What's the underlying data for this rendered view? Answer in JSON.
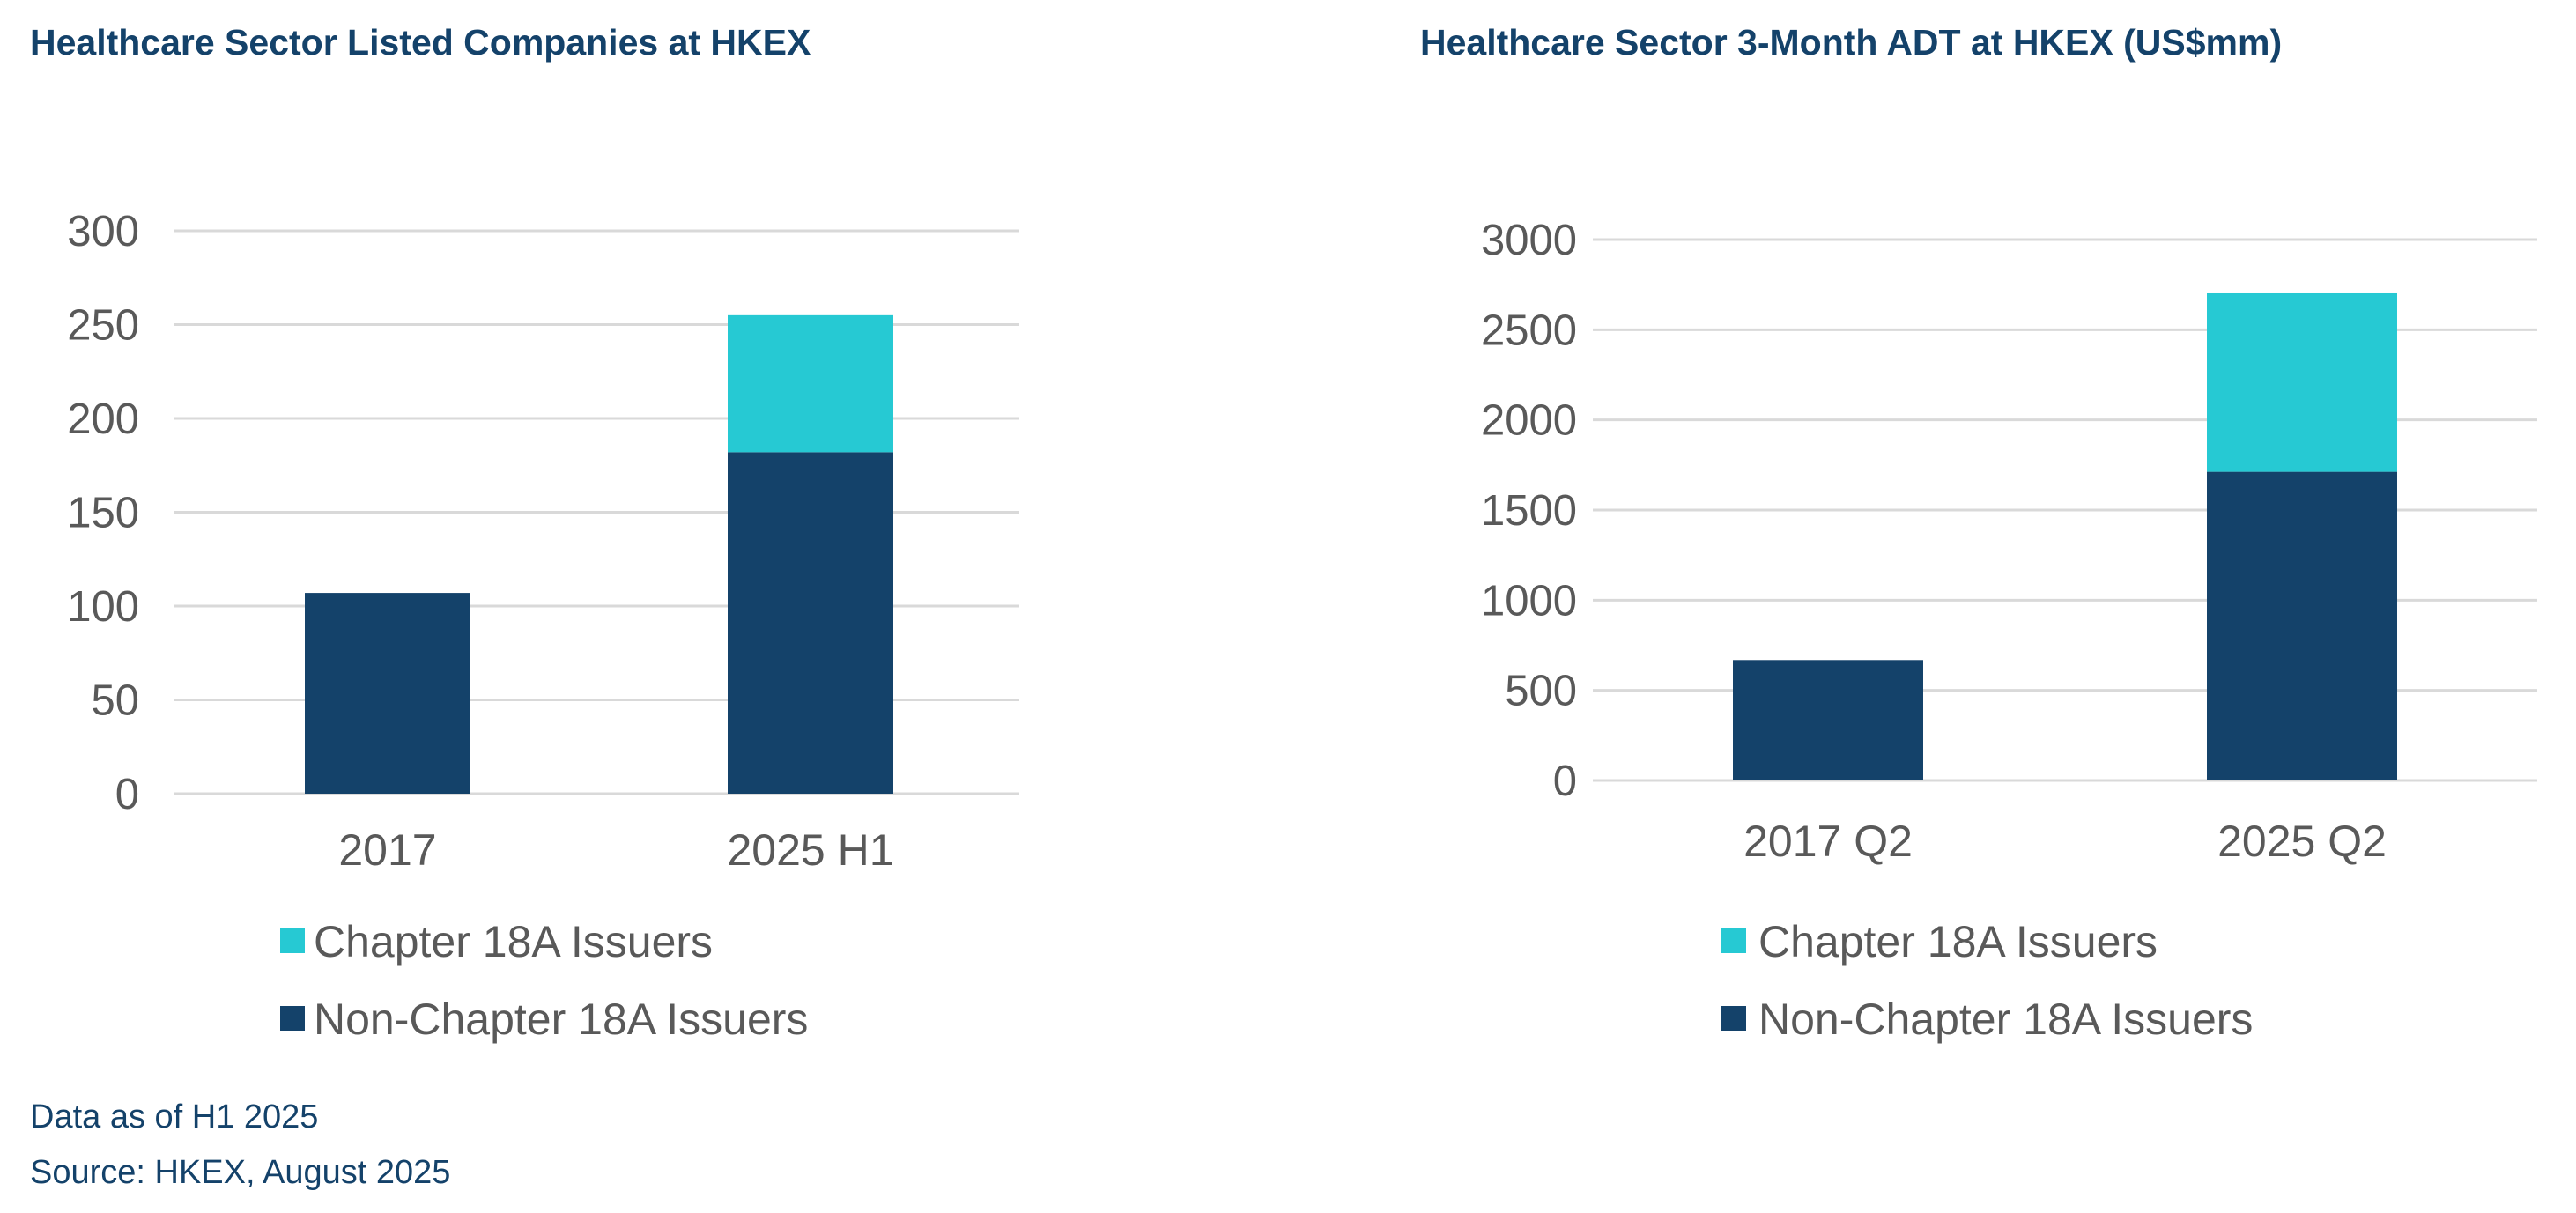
{
  "colors": {
    "chapter_18a": "#26c9d3",
    "non_chapter_18a": "#14426a",
    "title": "#14426a",
    "grid": "#d9d9d9",
    "text": "#595959"
  },
  "chart_data": [
    {
      "type": "bar",
      "stacked": true,
      "title": "Healthcare Sector Listed Companies at HKEX",
      "xlabel": "",
      "ylabel": "",
      "categories": [
        "2017",
        "2025 H1"
      ],
      "ylim": [
        0,
        300
      ],
      "yticks": [
        "0",
        "50",
        "100",
        "150",
        "200",
        "250",
        "300"
      ],
      "grid": true,
      "legend_position": "bottom",
      "series": [
        {
          "name": "Non-Chapter 18A Issuers",
          "values": [
            107,
            182
          ]
        },
        {
          "name": "Chapter 18A Issuers",
          "values": [
            0,
            73
          ]
        }
      ],
      "legend": [
        "Chapter 18A Issuers",
        "Non-Chapter 18A Issuers"
      ]
    },
    {
      "type": "bar",
      "stacked": true,
      "title": "Healthcare Sector 3-Month ADT at HKEX (US$mm)",
      "xlabel": "",
      "ylabel": "",
      "categories": [
        "2017 Q2",
        "2025 Q2"
      ],
      "ylim": [
        0,
        3000
      ],
      "yticks": [
        "0",
        "500",
        "1000",
        "1500",
        "2000",
        "2500",
        "3000"
      ],
      "grid": true,
      "legend_position": "bottom",
      "series": [
        {
          "name": "Non-Chapter 18A Issuers",
          "values": [
            668,
            1712
          ]
        },
        {
          "name": "Chapter 18A Issuers",
          "values": [
            0,
            990
          ]
        }
      ],
      "legend": [
        "Chapter 18A Issuers",
        "Non-Chapter 18A Issuers"
      ]
    }
  ],
  "footnotes": [
    "Data as of H1 2025",
    "Source: HKEX, August 2025"
  ]
}
